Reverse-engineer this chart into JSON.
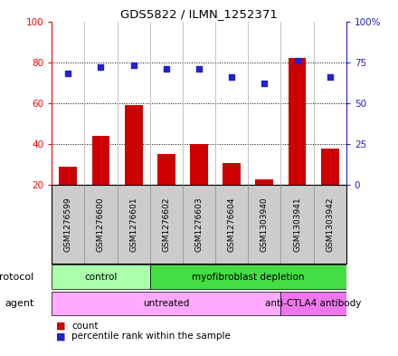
{
  "title": "GDS5822 / ILMN_1252371",
  "samples": [
    "GSM1276599",
    "GSM1276600",
    "GSM1276601",
    "GSM1276602",
    "GSM1276603",
    "GSM1276604",
    "GSM1303940",
    "GSM1303941",
    "GSM1303942"
  ],
  "counts": [
    29,
    44,
    59,
    35,
    40,
    31,
    23,
    82,
    38
  ],
  "percentiles": [
    68,
    72,
    73,
    71,
    71,
    66,
    62,
    76,
    66
  ],
  "ylim_left": [
    20,
    100
  ],
  "ylim_right": [
    0,
    100
  ],
  "yticks_left": [
    20,
    40,
    60,
    80,
    100
  ],
  "yticks_right": [
    0,
    25,
    50,
    75,
    100
  ],
  "yticklabels_right": [
    "0",
    "25",
    "50",
    "75",
    "100%"
  ],
  "bar_color": "#cc0000",
  "dot_color": "#2222cc",
  "protocol_groups": [
    {
      "label": "control",
      "start": 0,
      "end": 3,
      "color": "#aaffaa"
    },
    {
      "label": "myofibroblast depletion",
      "start": 3,
      "end": 9,
      "color": "#44dd44"
    }
  ],
  "agent_groups": [
    {
      "label": "untreated",
      "start": 0,
      "end": 7,
      "color": "#ffaaff"
    },
    {
      "label": "anti-CTLA4 antibody",
      "start": 7,
      "end": 9,
      "color": "#ee77ee"
    }
  ],
  "legend_count_label": "count",
  "legend_percentile_label": "percentile rank within the sample",
  "protocol_label": "protocol",
  "agent_label": "agent",
  "sample_box_color": "#cccccc",
  "sample_box_edge": "#888888",
  "grid_yticks": [
    40,
    60,
    80
  ]
}
